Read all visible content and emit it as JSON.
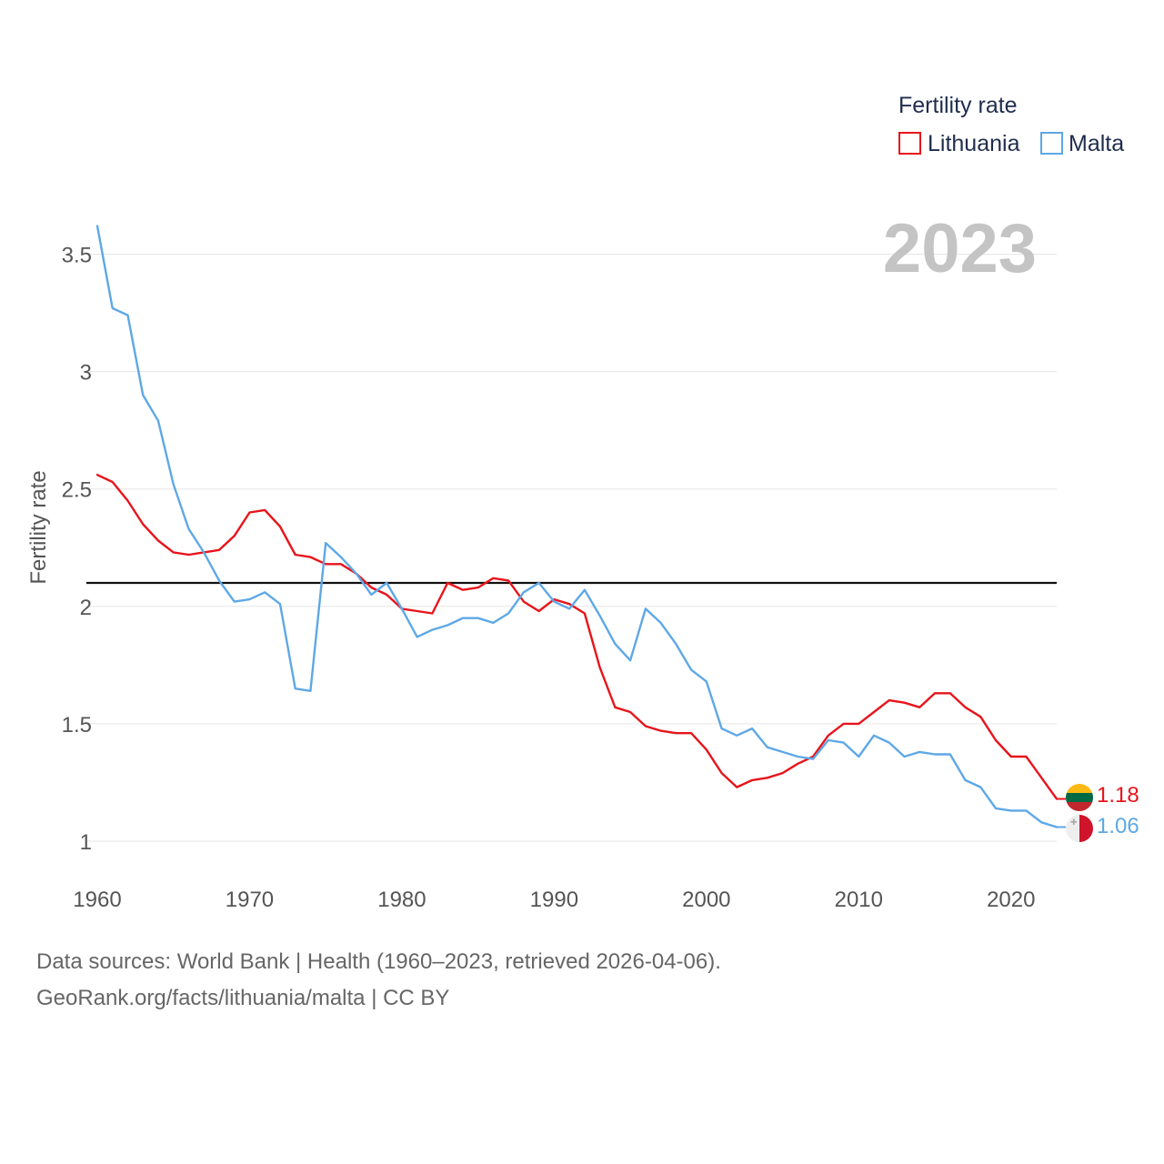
{
  "chart_data": {
    "type": "line",
    "title": "",
    "ylabel": "Fertility rate",
    "xlabel": "",
    "year_display": "2023",
    "xlim": [
      1960,
      2023
    ],
    "ylim": [
      0.85,
      3.65
    ],
    "x_ticks": [
      1960,
      1970,
      1980,
      1990,
      2000,
      2010,
      2020
    ],
    "y_ticks": [
      1,
      1.5,
      2,
      2.5,
      3,
      3.5
    ],
    "y_tick_labels": [
      "1",
      "1.5",
      "2",
      "2.5",
      "3",
      "3.5"
    ],
    "reference_line": 2.1,
    "legend": {
      "title": "Fertility rate",
      "position": "top-right"
    },
    "x": [
      1960,
      1961,
      1962,
      1963,
      1964,
      1965,
      1966,
      1967,
      1968,
      1969,
      1970,
      1971,
      1972,
      1973,
      1974,
      1975,
      1976,
      1977,
      1978,
      1979,
      1980,
      1981,
      1982,
      1983,
      1984,
      1985,
      1986,
      1987,
      1988,
      1989,
      1990,
      1991,
      1992,
      1993,
      1994,
      1995,
      1996,
      1997,
      1998,
      1999,
      2000,
      2001,
      2002,
      2003,
      2004,
      2005,
      2006,
      2007,
      2008,
      2009,
      2010,
      2011,
      2012,
      2013,
      2014,
      2015,
      2016,
      2017,
      2018,
      2019,
      2020,
      2021,
      2022,
      2023
    ],
    "series": [
      {
        "name": "Lithuania",
        "color": "#e8141b",
        "end_label": "1.18",
        "values": [
          2.56,
          2.53,
          2.45,
          2.35,
          2.28,
          2.23,
          2.22,
          2.23,
          2.24,
          2.3,
          2.4,
          2.41,
          2.34,
          2.22,
          2.21,
          2.18,
          2.18,
          2.14,
          2.08,
          2.05,
          1.99,
          1.98,
          1.97,
          2.1,
          2.07,
          2.08,
          2.12,
          2.11,
          2.02,
          1.98,
          2.03,
          2.01,
          1.97,
          1.74,
          1.57,
          1.55,
          1.49,
          1.47,
          1.46,
          1.46,
          1.39,
          1.29,
          1.23,
          1.26,
          1.27,
          1.29,
          1.33,
          1.36,
          1.45,
          1.5,
          1.5,
          1.55,
          1.6,
          1.59,
          1.57,
          1.63,
          1.63,
          1.57,
          1.53,
          1.43,
          1.36,
          1.36,
          1.27,
          1.18
        ]
      },
      {
        "name": "Malta",
        "color": "#5ea8e6",
        "end_label": "1.06",
        "values": [
          3.62,
          3.27,
          3.24,
          2.9,
          2.79,
          2.52,
          2.33,
          2.23,
          2.11,
          2.02,
          2.03,
          2.06,
          2.01,
          1.65,
          1.64,
          2.27,
          2.21,
          2.14,
          2.05,
          2.1,
          1.99,
          1.87,
          1.9,
          1.92,
          1.95,
          1.95,
          1.93,
          1.97,
          2.06,
          2.1,
          2.02,
          1.99,
          2.07,
          1.96,
          1.84,
          1.77,
          1.99,
          1.93,
          1.84,
          1.73,
          1.68,
          1.48,
          1.45,
          1.48,
          1.4,
          1.38,
          1.36,
          1.35,
          1.43,
          1.42,
          1.36,
          1.45,
          1.42,
          1.36,
          1.38,
          1.37,
          1.37,
          1.26,
          1.23,
          1.14,
          1.13,
          1.13,
          1.08,
          1.06
        ]
      }
    ]
  },
  "footer": {
    "line1": "Data sources: World Bank | Health (1960–2023, retrieved 2026-04-06).",
    "line2": "GeoRank.org/facts/lithuania/malta | CC BY"
  }
}
